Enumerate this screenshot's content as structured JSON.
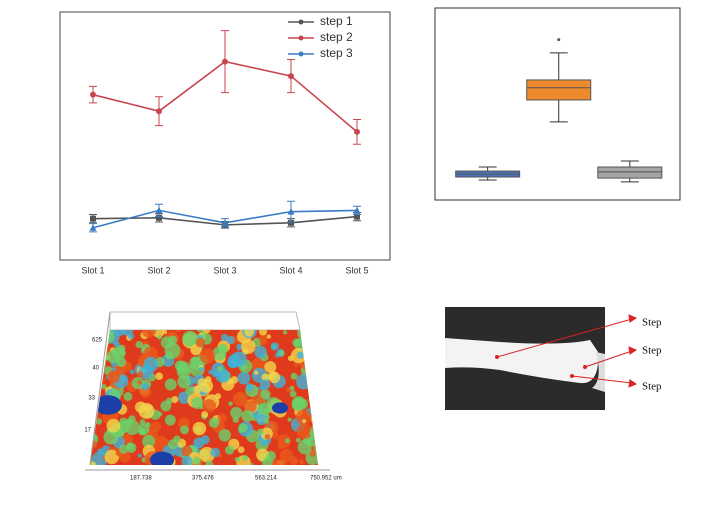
{
  "chart_data": [
    {
      "type": "line",
      "categories": [
        "Slot 1",
        "Slot 2",
        "Slot 3",
        "Slot 4",
        "Slot 5"
      ],
      "ylim": [
        0,
        6
      ],
      "series": [
        {
          "name": "step 1",
          "color": "#555555",
          "marker": "square",
          "values": [
            1.0,
            1.02,
            0.85,
            0.9,
            1.05
          ],
          "errors": [
            0.1,
            0.1,
            0.08,
            0.1,
            0.1
          ]
        },
        {
          "name": "step 2",
          "color": "#c8464f",
          "marker": "circle",
          "values": [
            4.0,
            3.6,
            4.8,
            4.45,
            3.1
          ],
          "errors": [
            0.2,
            0.35,
            0.75,
            0.4,
            0.3
          ]
        },
        {
          "name": "step 3",
          "color": "#3a7cc4",
          "marker": "triangle",
          "values": [
            0.78,
            1.2,
            0.9,
            1.17,
            1.2
          ],
          "errors": [
            0.1,
            0.15,
            0.1,
            0.25,
            0.1
          ]
        }
      ]
    },
    {
      "type": "box",
      "ylim": [
        0,
        7.1
      ],
      "boxes": [
        {
          "color": "#4a72b8",
          "min": 0.74,
          "q1": 0.85,
          "median": 0.96,
          "q3": 1.07,
          "max": 1.22,
          "outliers": []
        },
        {
          "color": "#ee8a2e",
          "min": 2.89,
          "q1": 3.7,
          "median": 4.15,
          "q3": 4.44,
          "max": 5.44,
          "outliers": [
            5.93
          ]
        },
        {
          "color": "#a5a5a5",
          "min": 0.67,
          "q1": 0.81,
          "median": 1.04,
          "q3": 1.22,
          "max": 1.44,
          "outliers": []
        }
      ]
    }
  ],
  "surface": {
    "x_labels": [
      "187.738",
      "375.476",
      "563.214",
      "750.952 um"
    ],
    "y_labels": [
      "625",
      "40",
      "33",
      "17"
    ]
  },
  "photo": {
    "labels": [
      "Step",
      "Step",
      "Step"
    ]
  }
}
